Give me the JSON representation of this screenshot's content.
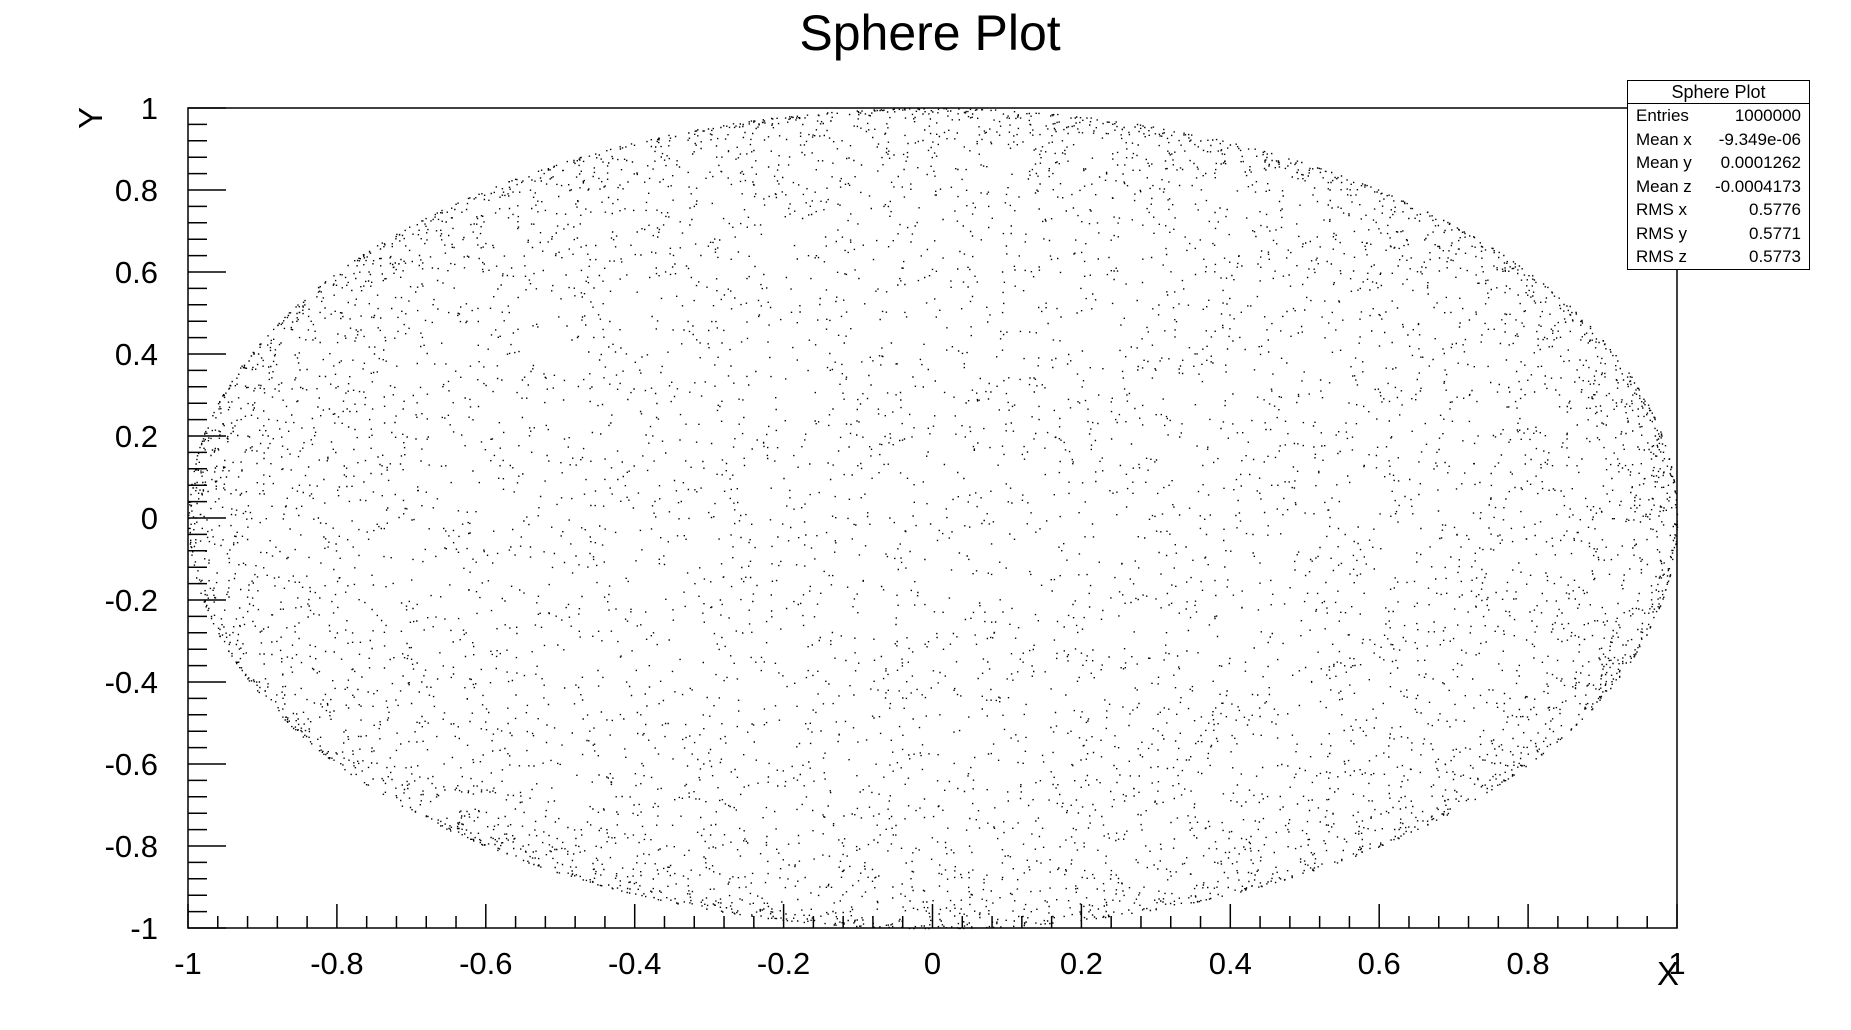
{
  "chart_data": {
    "type": "scatter",
    "title": "Sphere Plot",
    "xlabel": "X",
    "ylabel": "Y",
    "xlim": [
      -1,
      1
    ],
    "ylim": [
      -1,
      1
    ],
    "x_ticks": [
      "-1",
      "-0.8",
      "-0.6",
      "-0.4",
      "-0.2",
      "0",
      "0.2",
      "0.4",
      "0.6",
      "0.8",
      "1"
    ],
    "y_ticks": [
      "-1",
      "-0.8",
      "-0.6",
      "-0.4",
      "-0.2",
      "0",
      "0.2",
      "0.4",
      "0.6",
      "0.8",
      "1"
    ],
    "description_of_points": "uniform points on unit sphere projected to x-y plane; filled unit disk with denser edge",
    "entries": 1000000,
    "point_color": "#000000"
  },
  "stats": {
    "title": "Sphere Plot",
    "rows": [
      {
        "label": "Entries",
        "value": "1000000"
      },
      {
        "label": "Mean x",
        "value": "-9.349e-06"
      },
      {
        "label": "Mean y",
        "value": "0.0001262"
      },
      {
        "label": "Mean z",
        "value": "-0.0004173"
      },
      {
        "label": "RMS x",
        "value": "0.5776"
      },
      {
        "label": "RMS y",
        "value": "0.5771"
      },
      {
        "label": "RMS z",
        "value": "0.5773"
      }
    ]
  }
}
